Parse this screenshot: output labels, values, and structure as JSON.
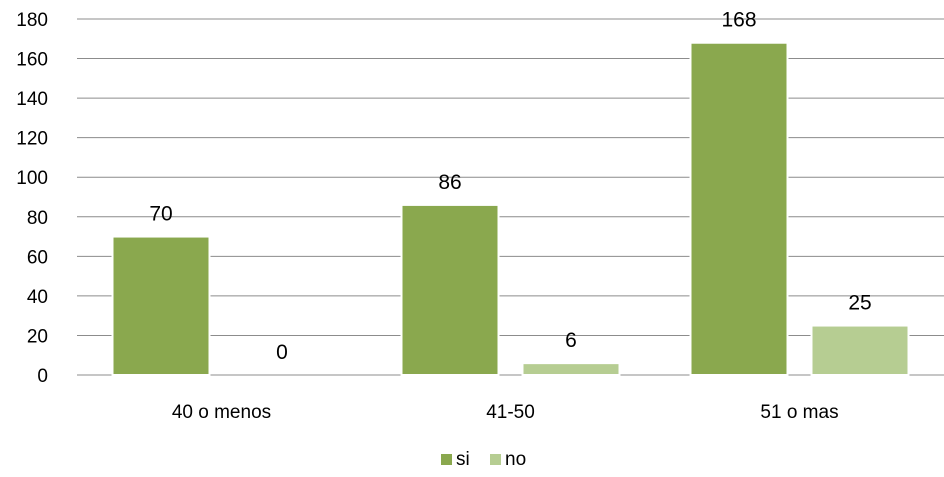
{
  "chart_data": {
    "type": "bar",
    "categories": [
      "40 o menos",
      "41-50",
      "51 o mas"
    ],
    "series": [
      {
        "name": "si",
        "values": [
          70,
          86,
          168
        ],
        "color": "#8AA84E"
      },
      {
        "name": "no",
        "values": [
          0,
          6,
          25
        ],
        "color": "#B6CD92"
      }
    ],
    "yticks": [
      "0",
      "20",
      "40",
      "60",
      "80",
      "100",
      "120",
      "140",
      "160",
      "180"
    ],
    "ylim": [
      0,
      180
    ],
    "grid": true,
    "legend": "bottom-center"
  }
}
